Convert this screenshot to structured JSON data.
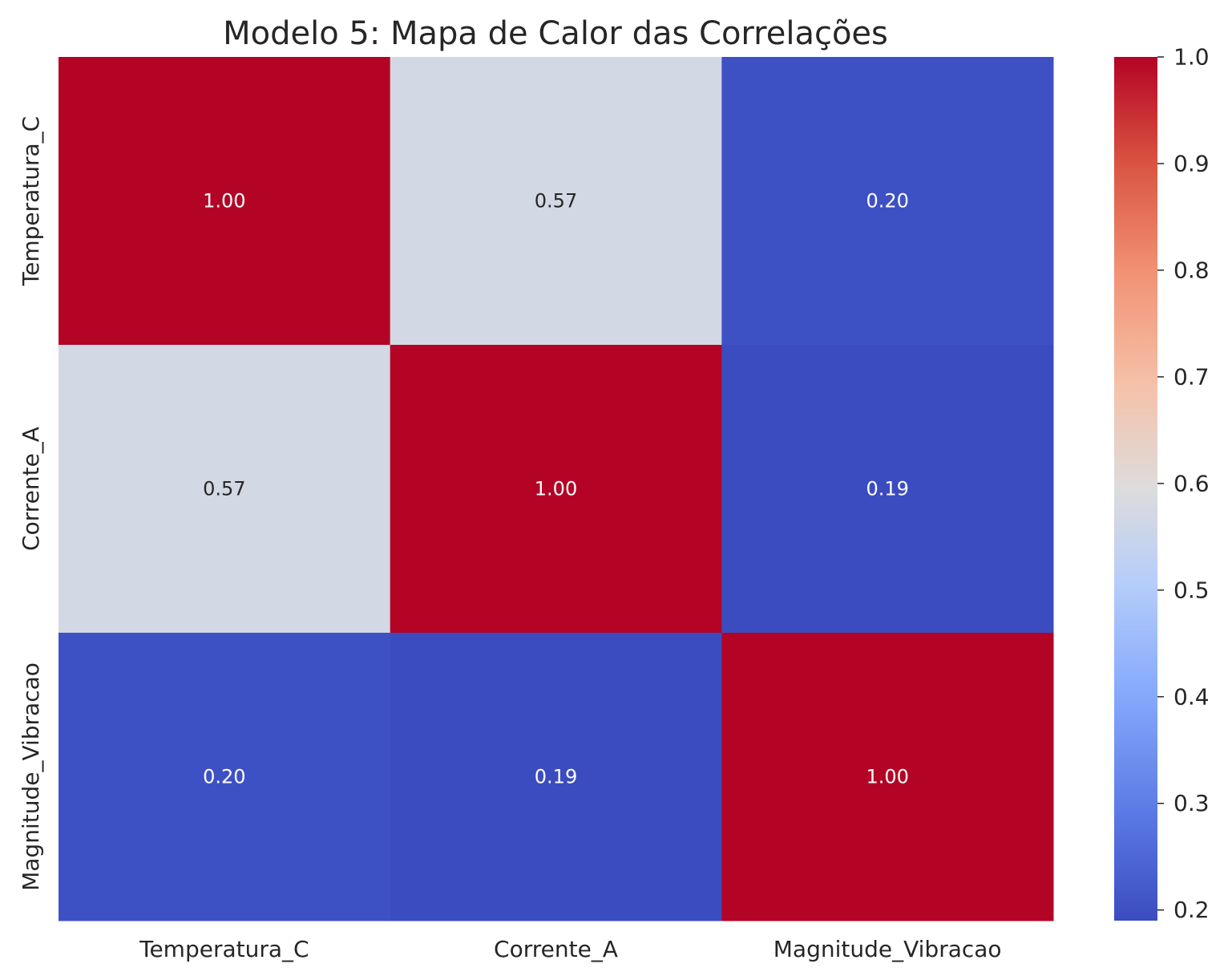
{
  "chart_data": {
    "type": "heatmap",
    "title": "Modelo 5: Mapa de Calor das Correlações",
    "row_labels": [
      "Temperatura_C",
      "Corrente_A",
      "Magnitude_Vibracao"
    ],
    "col_labels": [
      "Temperatura_C",
      "Corrente_A",
      "Magnitude_Vibracao"
    ],
    "values": [
      [
        1.0,
        0.57,
        0.2
      ],
      [
        0.57,
        1.0,
        0.19
      ],
      [
        0.2,
        0.19,
        1.0
      ]
    ],
    "annotations": [
      [
        "1.00",
        "0.57",
        "0.20"
      ],
      [
        "0.57",
        "1.00",
        "0.19"
      ],
      [
        "0.20",
        "0.19",
        "1.00"
      ]
    ],
    "colormap": "coolwarm",
    "colorbar": {
      "min": 0.19,
      "max": 1.0,
      "tick_values": [
        0.2,
        0.3,
        0.4,
        0.5,
        0.6,
        0.7,
        0.8,
        0.9,
        1.0
      ],
      "tick_labels": [
        "0.2",
        "0.3",
        "0.4",
        "0.5",
        "0.6",
        "0.7",
        "0.8",
        "0.9",
        "1.0"
      ]
    },
    "colors": {
      "high": "#b40426",
      "mid": "#d3dbe7",
      "low": "#3b4cc0"
    }
  }
}
